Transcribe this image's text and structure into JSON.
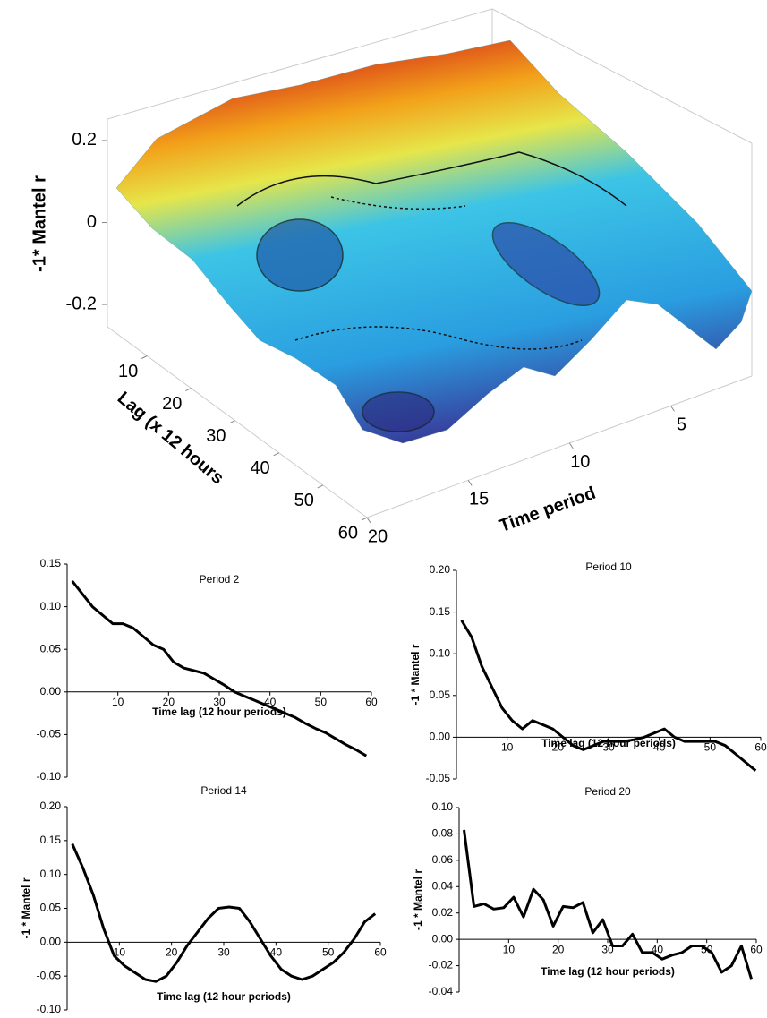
{
  "chart_data": [
    {
      "type": "surface",
      "xlabel": "Time period",
      "ylabel": "Lag (x 12 hours",
      "zlabel": "-1* Mantel r",
      "xlim": [
        1,
        20
      ],
      "xticks": [
        5,
        10,
        15,
        20
      ],
      "ylim": [
        1,
        60
      ],
      "yticks": [
        10,
        20,
        30,
        40,
        50,
        60
      ],
      "zlim": [
        -0.25,
        0.25
      ],
      "zticks": [
        -0.2,
        0,
        0.2
      ]
    },
    {
      "type": "line",
      "title": "Period 2",
      "xlabel": "Time lag (12 hour periods)",
      "color": "#000000",
      "x": [
        1,
        3,
        5,
        7,
        9,
        11,
        13,
        15,
        17,
        19,
        21,
        23,
        25,
        27,
        29,
        31,
        33,
        35,
        37,
        39,
        41,
        43,
        45,
        47,
        49,
        51,
        53,
        55,
        57,
        59
      ],
      "values": [
        0.13,
        0.115,
        0.1,
        0.09,
        0.08,
        0.08,
        0.075,
        0.065,
        0.055,
        0.05,
        0.035,
        0.028,
        0.025,
        0.022,
        0.015,
        0.008,
        0.0,
        -0.005,
        -0.01,
        -0.015,
        -0.02,
        -0.025,
        -0.03,
        -0.037,
        -0.043,
        -0.048,
        -0.055,
        -0.062,
        -0.068,
        -0.075
      ],
      "xlim": [
        0,
        60
      ],
      "xticks": [
        10,
        20,
        30,
        40,
        50,
        60
      ],
      "ylim": [
        -0.1,
        0.15
      ],
      "yticks": [
        {
          "value": -0.1,
          "label": "-0.10"
        },
        -0.05,
        {
          "value": 0,
          "label": "0.00"
        },
        0.05,
        {
          "value": 0.1,
          "label": "0.10"
        },
        0.15
      ]
    },
    {
      "type": "line",
      "title": "Period 10",
      "xlabel": "Time lag (12 hour periods)",
      "ylabel": "-1 * Mantel r",
      "color": "#000000",
      "x": [
        1,
        3,
        5,
        7,
        9,
        11,
        13,
        15,
        17,
        19,
        21,
        23,
        25,
        27,
        29,
        31,
        33,
        35,
        37,
        39,
        41,
        43,
        45,
        47,
        49,
        51,
        53,
        55,
        57,
        59
      ],
      "values": [
        0.14,
        0.12,
        0.085,
        0.06,
        0.035,
        0.02,
        0.01,
        0.02,
        0.015,
        0.01,
        0.0,
        -0.01,
        -0.015,
        -0.01,
        -0.005,
        -0.005,
        -0.005,
        -0.003,
        0.0,
        0.005,
        0.01,
        0.0,
        -0.005,
        -0.005,
        -0.005,
        -0.005,
        -0.01,
        -0.02,
        -0.03,
        -0.04
      ],
      "xlim": [
        0,
        60
      ],
      "xticks": [
        10,
        20,
        30,
        40,
        50,
        60
      ],
      "ylim": [
        -0.05,
        0.2
      ],
      "yticks": [
        -0.05,
        {
          "value": 0,
          "label": "0.00"
        },
        0.05,
        {
          "value": 0.1,
          "label": "0.10"
        },
        0.15,
        {
          "value": 0.2,
          "label": "0.20"
        }
      ]
    },
    {
      "type": "line",
      "title": "Period 14",
      "xlabel": "Time lag (12 hour periods)",
      "ylabel": "-1 * Mantel r",
      "color": "#000000",
      "x": [
        1,
        3,
        5,
        7,
        9,
        11,
        13,
        15,
        17,
        19,
        21,
        23,
        25,
        27,
        29,
        31,
        33,
        35,
        37,
        39,
        41,
        43,
        45,
        47,
        49,
        51,
        53,
        55,
        57,
        59
      ],
      "values": [
        0.145,
        0.11,
        0.07,
        0.02,
        -0.02,
        -0.035,
        -0.045,
        -0.055,
        -0.058,
        -0.05,
        -0.03,
        -0.005,
        0.015,
        0.035,
        0.05,
        0.052,
        0.05,
        0.03,
        0.005,
        -0.02,
        -0.04,
        -0.05,
        -0.055,
        -0.05,
        -0.04,
        -0.03,
        -0.015,
        0.005,
        0.03,
        0.042
      ],
      "xlim": [
        0,
        60
      ],
      "xticks": [
        10,
        20,
        30,
        40,
        50,
        60
      ],
      "ylim": [
        -0.1,
        0.2
      ],
      "yticks": [
        {
          "value": -0.1,
          "label": "-0.10"
        },
        -0.05,
        {
          "value": 0,
          "label": "0.00"
        },
        0.05,
        {
          "value": 0.1,
          "label": "0.10"
        },
        0.15,
        {
          "value": 0.2,
          "label": "0.20"
        }
      ]
    },
    {
      "type": "line",
      "title": "Period 20",
      "xlabel": "Time lag (12 hour periods)",
      "ylabel": "-1 * Mantel r",
      "color": "#000000",
      "x": [
        1,
        3,
        5,
        7,
        9,
        11,
        13,
        15,
        17,
        19,
        21,
        23,
        25,
        27,
        29,
        31,
        33,
        35,
        37,
        39,
        41,
        43,
        45,
        47,
        49,
        51,
        53,
        55,
        57,
        59
      ],
      "values": [
        0.083,
        0.025,
        0.027,
        0.023,
        0.024,
        0.032,
        0.017,
        0.038,
        0.03,
        0.01,
        0.025,
        0.024,
        0.028,
        0.005,
        0.015,
        -0.005,
        -0.005,
        0.004,
        -0.01,
        -0.01,
        -0.015,
        -0.012,
        -0.01,
        -0.005,
        -0.005,
        -0.01,
        -0.025,
        -0.02,
        -0.005,
        -0.03
      ],
      "xlim": [
        0,
        60
      ],
      "xticks": [
        10,
        20,
        30,
        40,
        50,
        60
      ],
      "ylim": [
        -0.04,
        0.1
      ],
      "yticks": [
        -0.04,
        -0.02,
        {
          "value": 0,
          "label": "0.00"
        },
        0.02,
        0.04,
        0.06,
        0.08,
        {
          "value": 0.1,
          "label": "0.10"
        }
      ]
    }
  ]
}
